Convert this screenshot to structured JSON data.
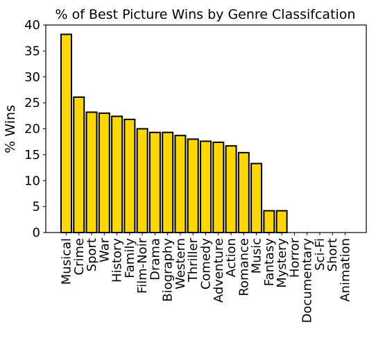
{
  "chart_data": {
    "type": "bar",
    "title": "% of Best Picture Wins by Genre Classifcation",
    "xlabel": "",
    "ylabel": "% Wins",
    "ylim": [
      0,
      40
    ],
    "yticks": [
      0,
      5,
      10,
      15,
      20,
      25,
      30,
      35,
      40
    ],
    "grid": false,
    "legend": "none",
    "bar_color": "#FFD700",
    "edge_color": "#000000",
    "categories": [
      "Musical",
      "Crime",
      "Sport",
      "War",
      "History",
      "Family",
      "Film-Noir",
      "Drama",
      "Biography",
      "Western",
      "Thriller",
      "Comedy",
      "Adventure",
      "Action",
      "Romance",
      "Music",
      "Fantasy",
      "Mystery",
      "Horror",
      "Documentary",
      "Sci-Fi",
      "Short",
      "Animation"
    ],
    "values": [
      38.2,
      26.1,
      23.2,
      23.0,
      22.4,
      21.8,
      20.0,
      19.3,
      19.3,
      18.7,
      18.0,
      17.6,
      17.4,
      16.7,
      15.4,
      13.3,
      4.2,
      4.2,
      0,
      0,
      0,
      0,
      0
    ]
  }
}
